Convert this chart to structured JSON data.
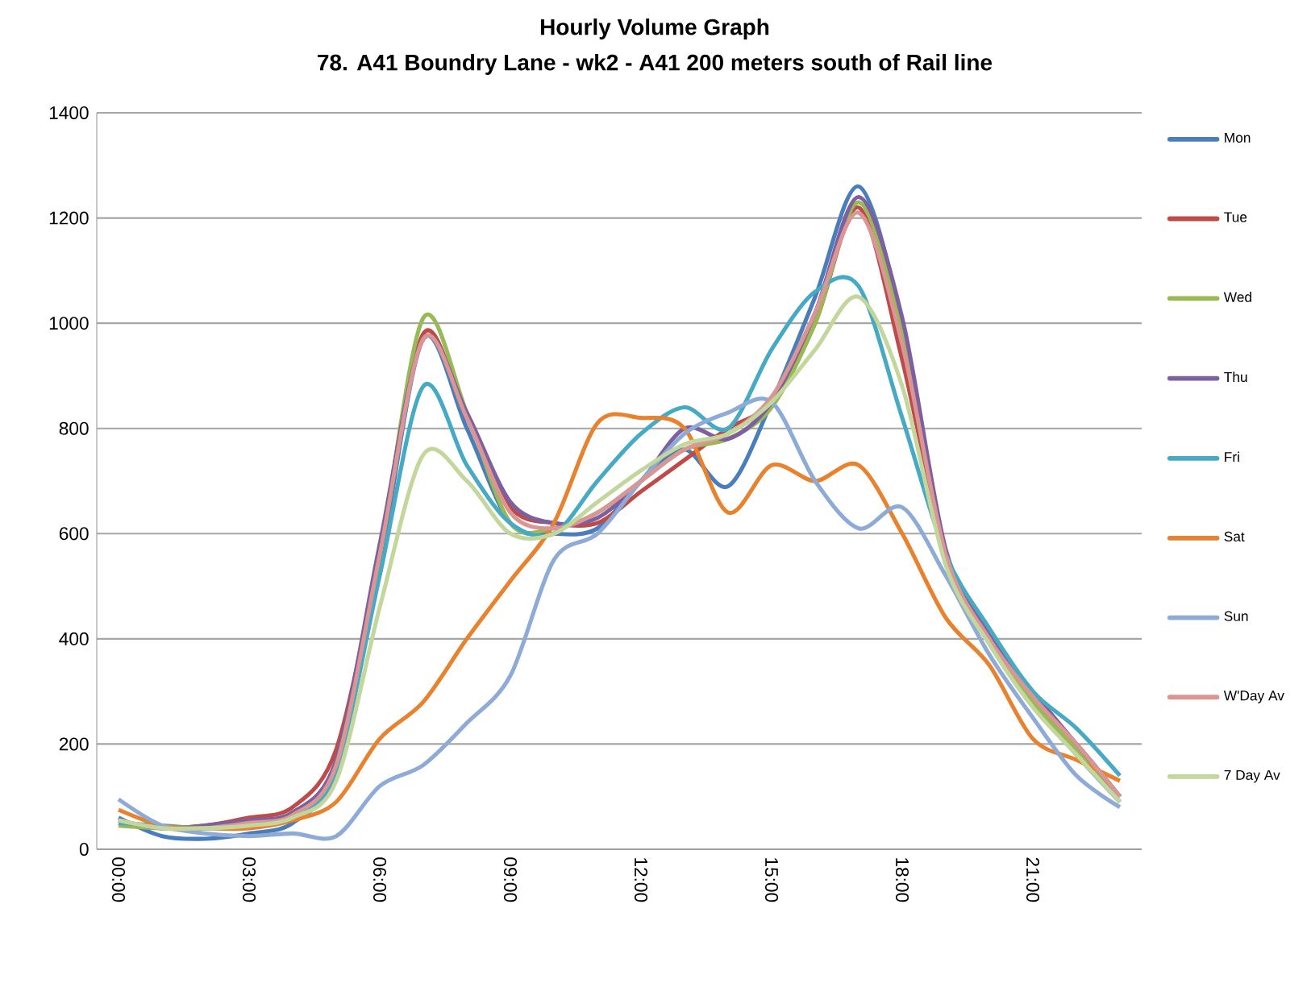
{
  "chart_data": {
    "type": "line",
    "title": "Hourly Volume Graph",
    "subtitle": "78. A41 Boundry Lane - wk2 - A41 200 meters south of Rail line",
    "categories": [
      "00:00",
      null,
      null,
      "03:00",
      null,
      null,
      "06:00",
      null,
      null,
      "09:00",
      null,
      null,
      "12:00",
      null,
      null,
      "15:00",
      null,
      null,
      "18:00",
      null,
      null,
      "21:00",
      null,
      null
    ],
    "series": [
      {
        "name": "Mon",
        "color": "#4a7ebb",
        "values": [
          60,
          25,
          20,
          30,
          50,
          150,
          540,
          970,
          800,
          620,
          600,
          610,
          700,
          760,
          690,
          850,
          1050,
          1260,
          1000,
          560,
          400,
          280,
          180,
          90
        ]
      },
      {
        "name": "Tue",
        "color": "#be4b48",
        "values": [
          50,
          40,
          45,
          60,
          80,
          190,
          560,
          980,
          820,
          650,
          620,
          620,
          680,
          740,
          800,
          850,
          1000,
          1220,
          930,
          560,
          400,
          280,
          200,
          100
        ]
      },
      {
        "name": "Wed",
        "color": "#98b954",
        "values": [
          45,
          40,
          40,
          50,
          70,
          160,
          560,
          1010,
          830,
          620,
          610,
          640,
          700,
          760,
          780,
          840,
          1000,
          1230,
          980,
          560,
          400,
          280,
          190,
          90
        ]
      },
      {
        "name": "Thu",
        "color": "#7d60a0",
        "values": [
          55,
          40,
          45,
          55,
          70,
          170,
          580,
          970,
          830,
          660,
          620,
          630,
          700,
          800,
          780,
          850,
          1020,
          1240,
          1010,
          570,
          410,
          300,
          200,
          100
        ]
      },
      {
        "name": "Fri",
        "color": "#46aac5",
        "values": [
          50,
          45,
          40,
          45,
          60,
          150,
          520,
          880,
          730,
          620,
          600,
          700,
          790,
          840,
          800,
          950,
          1060,
          1070,
          820,
          560,
          420,
          300,
          230,
          140
        ]
      },
      {
        "name": "Sat",
        "color": "#e8822e",
        "values": [
          75,
          45,
          40,
          40,
          55,
          90,
          210,
          280,
          400,
          510,
          620,
          810,
          820,
          800,
          640,
          730,
          700,
          730,
          600,
          440,
          350,
          210,
          170,
          130
        ]
      },
      {
        "name": "Sun",
        "color": "#8eaad6",
        "values": [
          95,
          45,
          30,
          25,
          30,
          25,
          120,
          160,
          240,
          330,
          550,
          600,
          700,
          790,
          830,
          850,
          700,
          610,
          650,
          520,
          370,
          250,
          140,
          80
        ]
      },
      {
        "name": "W'Day Av",
        "color": "#d99694",
        "values": [
          55,
          40,
          40,
          50,
          65,
          160,
          560,
          970,
          820,
          640,
          610,
          640,
          700,
          760,
          790,
          860,
          1020,
          1210,
          960,
          560,
          400,
          290,
          200,
          100
        ]
      },
      {
        "name": "7 Day Av",
        "color": "#c3d69b",
        "values": [
          55,
          40,
          40,
          45,
          60,
          130,
          460,
          750,
          700,
          600,
          600,
          660,
          720,
          770,
          790,
          850,
          950,
          1050,
          880,
          540,
          390,
          270,
          180,
          90
        ]
      }
    ],
    "ylim": [
      0,
      1400
    ],
    "yticks": [
      0,
      200,
      400,
      600,
      800,
      1000,
      1200,
      1400
    ],
    "grid": "y",
    "legend": "right",
    "marker": "none",
    "line_style": "solid"
  }
}
